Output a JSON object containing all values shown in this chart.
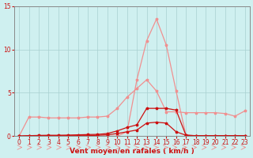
{
  "x": [
    0,
    1,
    2,
    3,
    4,
    5,
    6,
    7,
    8,
    9,
    10,
    11,
    12,
    13,
    14,
    15,
    16,
    17,
    18,
    19,
    20,
    21,
    22,
    23
  ],
  "line_gust": [
    0.0,
    2.2,
    2.2,
    2.1,
    2.1,
    2.1,
    2.1,
    2.2,
    2.2,
    2.3,
    3.2,
    4.5,
    5.5,
    6.5,
    5.2,
    2.8,
    2.8,
    2.7,
    2.7,
    2.7,
    2.7,
    2.6,
    2.3,
    2.9
  ],
  "line_peak": [
    0.0,
    0.0,
    0.0,
    0.0,
    0.0,
    0.0,
    0.0,
    0.0,
    0.0,
    0.0,
    0.0,
    0.5,
    6.5,
    11.0,
    13.5,
    10.5,
    5.2,
    0.1,
    0.0,
    0.0,
    0.0,
    0.0,
    0.0,
    0.0
  ],
  "line_freq": [
    0.0,
    0.05,
    0.05,
    0.05,
    0.05,
    0.05,
    0.05,
    0.05,
    0.1,
    0.15,
    0.3,
    0.5,
    0.7,
    1.5,
    1.6,
    1.5,
    0.5,
    0.1,
    0.05,
    0.05,
    0.05,
    0.05,
    0.05,
    0.05
  ],
  "line_calm": [
    0.0,
    0.05,
    0.08,
    0.1,
    0.1,
    0.12,
    0.15,
    0.18,
    0.2,
    0.3,
    0.6,
    1.0,
    1.3,
    3.2,
    3.2,
    3.2,
    3.0,
    0.1,
    0.05,
    0.05,
    0.05,
    0.05,
    0.05,
    0.05
  ],
  "color_light": "#f09090",
  "color_dark": "#cc1111",
  "bg_color": "#cff0f0",
  "grid_color": "#a8d0d0",
  "xlabel": "Vent moyen/en rafales ( km/h )",
  "ylim": [
    0,
    15
  ],
  "xlim": [
    -0.5,
    23.5
  ],
  "yticks": [
    0,
    5,
    10,
    15
  ],
  "xticks": [
    0,
    1,
    2,
    3,
    4,
    5,
    6,
    7,
    8,
    9,
    10,
    11,
    12,
    13,
    14,
    15,
    16,
    17,
    18,
    19,
    20,
    21,
    22,
    23
  ]
}
